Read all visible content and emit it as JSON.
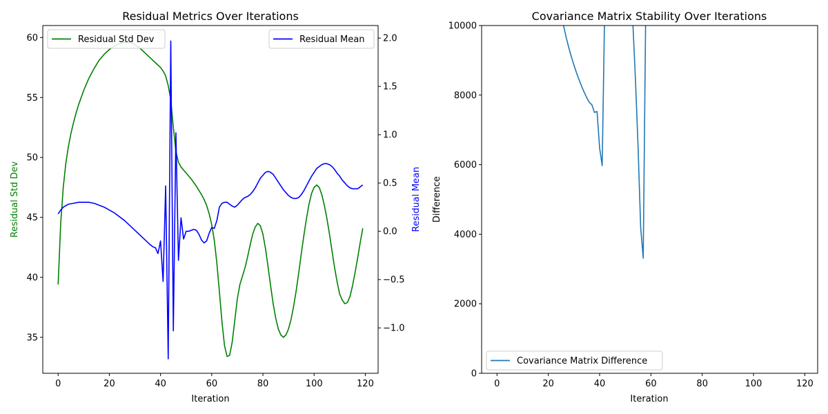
{
  "chart_data": [
    {
      "type": "line",
      "title": "Residual Metrics Over Iterations",
      "xlabel": "Iteration",
      "ylabel": "Residual Std Dev",
      "y2label": "Residual Mean",
      "xlim": [
        -6.0,
        125.0
      ],
      "ylim": [
        32.0,
        61.0
      ],
      "y2lim": [
        -1.47,
        2.13
      ],
      "xticks": [
        0,
        20,
        40,
        60,
        80,
        100,
        120
      ],
      "yticks": [
        35,
        40,
        45,
        50,
        55,
        60
      ],
      "y2ticks": [
        -1.0,
        -0.5,
        0.0,
        0.5,
        1.0,
        1.5,
        2.0
      ],
      "y2tick_labels": [
        "−1.0",
        "−0.5",
        "0.0",
        "0.5",
        "1.0",
        "1.5",
        "2.0"
      ],
      "legend_left": "upper-left",
      "legend_right": "upper-right",
      "series": [
        {
          "name": "Residual Std Dev",
          "axis": "left",
          "color": "#008000",
          "points": [
            [
              0,
              39.4
            ],
            [
              1,
              44.5
            ],
            [
              2,
              47.5
            ],
            [
              3,
              49.5
            ],
            [
              4,
              50.9
            ],
            [
              5,
              52.0
            ],
            [
              6,
              52.9
            ],
            [
              7,
              53.7
            ],
            [
              8,
              54.4
            ],
            [
              10,
              55.6
            ],
            [
              12,
              56.6
            ],
            [
              14,
              57.4
            ],
            [
              16,
              58.1
            ],
            [
              18,
              58.6
            ],
            [
              20,
              59.0
            ],
            [
              22,
              59.3
            ],
            [
              24,
              59.5
            ],
            [
              26,
              59.6
            ],
            [
              28,
              59.6
            ],
            [
              30,
              59.4
            ],
            [
              32,
              59.1
            ],
            [
              34,
              58.7
            ],
            [
              36,
              58.3
            ],
            [
              38,
              57.9
            ],
            [
              40,
              57.5
            ],
            [
              41,
              57.2
            ],
            [
              42,
              56.8
            ],
            [
              43,
              56.0
            ],
            [
              44,
              54.8
            ],
            [
              45,
              52.5
            ],
            [
              46,
              50.5
            ],
            [
              47,
              49.6
            ],
            [
              48,
              49.2
            ],
            [
              50,
              48.7
            ],
            [
              52,
              48.2
            ],
            [
              54,
              47.6
            ],
            [
              56,
              46.9
            ],
            [
              57,
              46.5
            ],
            [
              58,
              46.0
            ],
            [
              59,
              45.3
            ],
            [
              60,
              44.4
            ],
            [
              61,
              43.1
            ],
            [
              62,
              41.2
            ],
            [
              63,
              38.8
            ],
            [
              64,
              36.3
            ],
            [
              65,
              34.3
            ],
            [
              66,
              33.4
            ],
            [
              67,
              33.5
            ],
            [
              68,
              34.6
            ],
            [
              69,
              36.4
            ],
            [
              70,
              38.2
            ],
            [
              71,
              39.4
            ],
            [
              72,
              40.1
            ],
            [
              73,
              40.8
            ],
            [
              74,
              41.7
            ],
            [
              75,
              42.7
            ],
            [
              76,
              43.6
            ],
            [
              77,
              44.2
            ],
            [
              78,
              44.5
            ],
            [
              79,
              44.3
            ],
            [
              80,
              43.6
            ],
            [
              81,
              42.4
            ],
            [
              82,
              40.9
            ],
            [
              83,
              39.3
            ],
            [
              84,
              37.8
            ],
            [
              85,
              36.6
            ],
            [
              86,
              35.7
            ],
            [
              87,
              35.2
            ],
            [
              88,
              35.0
            ],
            [
              89,
              35.2
            ],
            [
              90,
              35.7
            ],
            [
              91,
              36.5
            ],
            [
              92,
              37.6
            ],
            [
              93,
              38.9
            ],
            [
              94,
              40.4
            ],
            [
              95,
              42.0
            ],
            [
              96,
              43.5
            ],
            [
              97,
              44.9
            ],
            [
              98,
              46.1
            ],
            [
              99,
              47.0
            ],
            [
              100,
              47.5
            ],
            [
              101,
              47.7
            ],
            [
              102,
              47.5
            ],
            [
              103,
              46.9
            ],
            [
              104,
              46.0
            ],
            [
              105,
              44.9
            ],
            [
              106,
              43.6
            ],
            [
              107,
              42.2
            ],
            [
              108,
              40.8
            ],
            [
              109,
              39.6
            ],
            [
              110,
              38.6
            ],
            [
              111,
              38.1
            ],
            [
              112,
              37.8
            ],
            [
              113,
              37.9
            ],
            [
              114,
              38.4
            ],
            [
              115,
              39.3
            ],
            [
              116,
              40.4
            ],
            [
              117,
              41.6
            ],
            [
              118,
              42.9
            ],
            [
              119,
              44.1
            ]
          ]
        },
        {
          "name": "Residual Mean",
          "axis": "right",
          "color": "#0000ff",
          "points": [
            [
              0,
              0.18
            ],
            [
              1,
              0.22
            ],
            [
              2,
              0.25
            ],
            [
              4,
              0.28
            ],
            [
              6,
              0.29
            ],
            [
              8,
              0.3
            ],
            [
              10,
              0.3
            ],
            [
              12,
              0.3
            ],
            [
              14,
              0.29
            ],
            [
              16,
              0.27
            ],
            [
              18,
              0.25
            ],
            [
              20,
              0.22
            ],
            [
              22,
              0.19
            ],
            [
              24,
              0.15
            ],
            [
              26,
              0.11
            ],
            [
              28,
              0.06
            ],
            [
              30,
              0.01
            ],
            [
              32,
              -0.04
            ],
            [
              34,
              -0.09
            ],
            [
              36,
              -0.14
            ],
            [
              37,
              -0.16
            ],
            [
              38,
              -0.17
            ],
            [
              39,
              -0.23
            ],
            [
              40,
              -0.1
            ],
            [
              41,
              -0.52
            ],
            [
              42,
              0.47
            ],
            [
              43,
              -1.32
            ],
            [
              44,
              1.97
            ],
            [
              45,
              -1.03
            ],
            [
              46,
              1.02
            ],
            [
              47,
              -0.3
            ],
            [
              48,
              0.14
            ],
            [
              49,
              -0.08
            ],
            [
              50,
              0.0
            ],
            [
              51,
              0.0
            ],
            [
              52,
              0.01
            ],
            [
              53,
              0.02
            ],
            [
              54,
              0.01
            ],
            [
              55,
              -0.03
            ],
            [
              56,
              -0.09
            ],
            [
              57,
              -0.12
            ],
            [
              58,
              -0.1
            ],
            [
              59,
              -0.02
            ],
            [
              60,
              0.04
            ],
            [
              61,
              0.03
            ],
            [
              62,
              0.11
            ],
            [
              63,
              0.25
            ],
            [
              64,
              0.29
            ],
            [
              65,
              0.3
            ],
            [
              66,
              0.3
            ],
            [
              67,
              0.28
            ],
            [
              68,
              0.26
            ],
            [
              69,
              0.25
            ],
            [
              70,
              0.27
            ],
            [
              71,
              0.3
            ],
            [
              72,
              0.33
            ],
            [
              73,
              0.35
            ],
            [
              74,
              0.36
            ],
            [
              75,
              0.38
            ],
            [
              76,
              0.41
            ],
            [
              77,
              0.45
            ],
            [
              78,
              0.5
            ],
            [
              79,
              0.55
            ],
            [
              80,
              0.58
            ],
            [
              81,
              0.61
            ],
            [
              82,
              0.62
            ],
            [
              83,
              0.61
            ],
            [
              84,
              0.59
            ],
            [
              85,
              0.55
            ],
            [
              86,
              0.51
            ],
            [
              87,
              0.47
            ],
            [
              88,
              0.43
            ],
            [
              89,
              0.4
            ],
            [
              90,
              0.37
            ],
            [
              91,
              0.35
            ],
            [
              92,
              0.34
            ],
            [
              93,
              0.34
            ],
            [
              94,
              0.35
            ],
            [
              95,
              0.38
            ],
            [
              96,
              0.42
            ],
            [
              97,
              0.47
            ],
            [
              98,
              0.52
            ],
            [
              99,
              0.57
            ],
            [
              100,
              0.61
            ],
            [
              101,
              0.65
            ],
            [
              102,
              0.67
            ],
            [
              103,
              0.69
            ],
            [
              104,
              0.7
            ],
            [
              105,
              0.7
            ],
            [
              106,
              0.69
            ],
            [
              107,
              0.67
            ],
            [
              108,
              0.64
            ],
            [
              109,
              0.6
            ],
            [
              110,
              0.57
            ],
            [
              111,
              0.53
            ],
            [
              112,
              0.5
            ],
            [
              113,
              0.47
            ],
            [
              114,
              0.45
            ],
            [
              115,
              0.44
            ],
            [
              116,
              0.44
            ],
            [
              117,
              0.44
            ],
            [
              118,
              0.46
            ],
            [
              119,
              0.48
            ]
          ]
        }
      ]
    },
    {
      "type": "line",
      "title": "Covariance Matrix Stability Over Iterations",
      "xlabel": "Iteration",
      "ylabel": "Difference",
      "xlim": [
        -6.0,
        125.0
      ],
      "ylim": [
        0,
        10000
      ],
      "xticks": [
        0,
        20,
        40,
        60,
        80,
        100,
        120
      ],
      "yticks": [
        0,
        2000,
        4000,
        6000,
        8000,
        10000
      ],
      "legend": "lower-left",
      "series": [
        {
          "name": "Covariance Matrix Difference",
          "color": "#1f77b4",
          "points": [
            [
              24,
              10400
            ],
            [
              25,
              10200
            ],
            [
              26,
              9980
            ],
            [
              27,
              9650
            ],
            [
              28,
              9360
            ],
            [
              29,
              9100
            ],
            [
              30,
              8860
            ],
            [
              31,
              8640
            ],
            [
              32,
              8440
            ],
            [
              33,
              8250
            ],
            [
              34,
              8080
            ],
            [
              35,
              7920
            ],
            [
              36,
              7790
            ],
            [
              37,
              7720
            ],
            [
              38,
              7500
            ],
            [
              39,
              7530
            ],
            [
              40,
              6480
            ],
            [
              41,
              5970
            ],
            [
              42,
              10600
            ],
            [
              52,
              10600
            ],
            [
              53,
              10000
            ],
            [
              54,
              8400
            ],
            [
              55,
              6500
            ],
            [
              56,
              4200
            ],
            [
              57,
              3310
            ],
            [
              58,
              10600
            ]
          ]
        }
      ]
    }
  ]
}
